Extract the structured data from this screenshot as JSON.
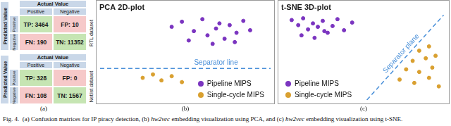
{
  "confusion_matrices": {
    "header": "Actual Value",
    "row_header": "Predicted Value",
    "classes": [
      "Positive",
      "Negative"
    ],
    "colors": {
      "correct": "#c6e5b3",
      "wrong": "#f6c9c9",
      "header": "#c9d7e8"
    },
    "matrices": [
      {
        "name": "RTL dataset",
        "cells": [
          [
            {
              "label": "TP:",
              "value": 3464
            },
            {
              "label": "FP:",
              "value": 10
            }
          ],
          [
            {
              "label": "FN:",
              "value": 190
            },
            {
              "label": "TN:",
              "value": 11352
            }
          ]
        ]
      },
      {
        "name": "Netlist dataset",
        "cells": [
          [
            {
              "label": "TP:",
              "value": 328
            },
            {
              "label": "FP:",
              "value": 0
            }
          ],
          [
            {
              "label": "FN:",
              "value": 108
            },
            {
              "label": "TN:",
              "value": 1567
            }
          ]
        ]
      }
    ]
  },
  "chart_data": [
    {
      "type": "scatter",
      "title": "PCA 2D-plot",
      "xlim": [
        0,
        10
      ],
      "ylim": [
        0,
        10
      ],
      "tick_labels": false,
      "grid": false,
      "legend": "bottom right",
      "series": [
        {
          "name": "Pipeline MIPS",
          "color": "#7b35c0",
          "marker": "circle",
          "values": [
            [
              4.2,
              8.6
            ],
            [
              4.8,
              9.2
            ],
            [
              5.5,
              8.1
            ],
            [
              6.0,
              9.5
            ],
            [
              6.3,
              7.6
            ],
            [
              6.8,
              8.4
            ],
            [
              7.0,
              9.0
            ],
            [
              7.3,
              7.2
            ],
            [
              7.6,
              8.8
            ],
            [
              8.0,
              7.9
            ],
            [
              8.4,
              9.3
            ],
            [
              8.8,
              8.2
            ],
            [
              5.2,
              7.0
            ],
            [
              6.6,
              6.6
            ],
            [
              7.9,
              6.8
            ]
          ]
        },
        {
          "name": "Single-cycle MIPS",
          "color": "#d9a030",
          "marker": "circle",
          "values": [
            [
              2.5,
              2.6
            ],
            [
              3.1,
              3.0
            ],
            [
              3.6,
              2.3
            ],
            [
              4.2,
              2.8
            ],
            [
              4.8,
              2.1
            ]
          ]
        }
      ],
      "separator": {
        "label": "Separator line",
        "color": "#4a90d9",
        "line_style": "dashed",
        "x": [
          0,
          10
        ],
        "y": [
          3.7,
          3.7
        ]
      }
    },
    {
      "type": "scatter",
      "title": "t-SNE 3D-plot",
      "xlim": [
        0,
        10
      ],
      "ylim": [
        0,
        10
      ],
      "tick_labels": false,
      "grid": false,
      "legend": "bottom left",
      "series": [
        {
          "name": "Pipeline MIPS",
          "color": "#7b35c0",
          "marker": "circle",
          "values": [
            [
              0.6,
              9.4
            ],
            [
              1.0,
              8.8
            ],
            [
              1.3,
              9.6
            ],
            [
              1.6,
              8.3
            ],
            [
              1.9,
              9.0
            ],
            [
              2.2,
              8.6
            ],
            [
              2.5,
              9.3
            ],
            [
              2.8,
              7.9
            ],
            [
              3.1,
              8.7
            ],
            [
              3.4,
              9.5
            ],
            [
              1.2,
              7.6
            ],
            [
              2.0,
              7.3
            ],
            [
              3.8,
              8.2
            ],
            [
              4.3,
              9.1
            ],
            [
              2.6,
              8.1
            ]
          ]
        },
        {
          "name": "Single-cycle MIPS",
          "color": "#d9a030",
          "marker": "circle",
          "values": [
            [
              8.4,
              5.8
            ],
            [
              9.0,
              6.3
            ],
            [
              8.0,
              4.6
            ],
            [
              8.8,
              4.9
            ],
            [
              9.4,
              5.2
            ],
            [
              7.6,
              3.6
            ],
            [
              8.4,
              3.3
            ],
            [
              9.2,
              3.8
            ],
            [
              7.2,
              2.4
            ],
            [
              8.1,
              2.0
            ],
            [
              9.0,
              2.6
            ],
            [
              9.6,
              1.6
            ]
          ]
        }
      ],
      "separator": {
        "label": "Separator plane",
        "color": "#4a90d9",
        "line_style": "dashed",
        "x": [
          5.2,
          9.9
        ],
        "y": [
          0,
          10
        ]
      }
    }
  ],
  "panel_labels": [
    "(a)",
    "(b)",
    "(c)"
  ],
  "caption": [
    {
      "text": "Fig. 4.  (a) Confusion matrices for IP piracy detection, (b) ",
      "italic": false
    },
    {
      "text": "hw2vec",
      "italic": true
    },
    {
      "text": " embedding visualization using PCA, and (c) ",
      "italic": false
    },
    {
      "text": "hw2vec",
      "italic": true
    },
    {
      "text": " embedding visualization using t-SNE.",
      "italic": false
    }
  ]
}
